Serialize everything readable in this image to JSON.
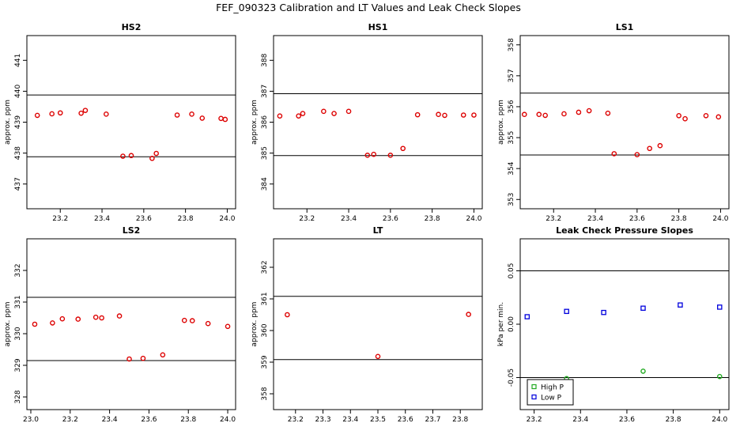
{
  "figure_title": "FEF_090323  Calibration and LT Values and Leak Check Slopes",
  "chart_data": [
    {
      "type": "scatter",
      "title": "HS2",
      "ylabel": "approx. ppm",
      "xlim": [
        23.04,
        24.04
      ],
      "ylim": [
        436.2,
        441.8
      ],
      "xticks": [
        23.2,
        23.4,
        23.6,
        23.8,
        24.0
      ],
      "xtick_labels": [
        "23.2",
        "23.4",
        "23.6",
        "23.8",
        "24.0"
      ],
      "yticks": [
        437,
        438,
        439,
        440,
        441
      ],
      "ytick_labels": [
        "437",
        "438",
        "439",
        "440",
        "441"
      ],
      "hlines": [
        439.88,
        437.88
      ],
      "series": [
        {
          "color": "#dd0000",
          "x": [
            23.09,
            23.16,
            23.2,
            23.3,
            23.32,
            23.42,
            23.5,
            23.54,
            23.64,
            23.66,
            23.76,
            23.83,
            23.88,
            23.97,
            23.99
          ],
          "y": [
            439.22,
            439.27,
            439.3,
            439.29,
            439.38,
            439.26,
            437.9,
            437.92,
            437.83,
            437.99,
            439.23,
            439.26,
            439.13,
            439.12,
            439.09
          ]
        }
      ]
    },
    {
      "type": "scatter",
      "title": "HS1",
      "ylabel": "approx. ppm",
      "xlim": [
        23.04,
        24.04
      ],
      "ylim": [
        383.2,
        388.8
      ],
      "xticks": [
        23.2,
        23.4,
        23.6,
        23.8,
        24.0
      ],
      "xtick_labels": [
        "23.2",
        "23.4",
        "23.6",
        "23.8",
        "24.0"
      ],
      "yticks": [
        384,
        385,
        386,
        387,
        388
      ],
      "ytick_labels": [
        "384",
        "385",
        "386",
        "387",
        "388"
      ],
      "hlines": [
        386.92,
        384.92
      ],
      "series": [
        {
          "color": "#dd0000",
          "x": [
            23.07,
            23.16,
            23.18,
            23.28,
            23.33,
            23.4,
            23.49,
            23.52,
            23.6,
            23.66,
            23.73,
            23.83,
            23.86,
            23.95,
            24.0
          ],
          "y": [
            386.2,
            386.2,
            386.28,
            386.35,
            386.28,
            386.35,
            384.93,
            384.96,
            384.93,
            385.15,
            386.24,
            386.25,
            386.22,
            386.23,
            386.23
          ]
        }
      ]
    },
    {
      "type": "scatter",
      "title": "LS1",
      "ylabel": "approx. ppm",
      "xlim": [
        23.04,
        24.04
      ],
      "ylim": [
        352.7,
        358.3
      ],
      "xticks": [
        23.2,
        23.4,
        23.6,
        23.8,
        24.0
      ],
      "xtick_labels": [
        "23.2",
        "23.4",
        "23.6",
        "23.8",
        "24.0"
      ],
      "yticks": [
        353,
        354,
        355,
        356,
        357,
        358
      ],
      "ytick_labels": [
        "353",
        "354",
        "355",
        "356",
        "357",
        "358"
      ],
      "hlines": [
        356.44,
        354.44
      ],
      "series": [
        {
          "color": "#dd0000",
          "x": [
            23.06,
            23.13,
            23.16,
            23.25,
            23.32,
            23.37,
            23.46,
            23.49,
            23.6,
            23.66,
            23.71,
            23.8,
            23.83,
            23.93,
            23.99
          ],
          "y": [
            355.75,
            355.75,
            355.72,
            355.77,
            355.82,
            355.87,
            355.79,
            354.48,
            354.45,
            354.65,
            354.74,
            355.71,
            355.61,
            355.71,
            355.67
          ]
        }
      ]
    },
    {
      "type": "scatter",
      "title": "LS2",
      "ylabel": "approx. ppm",
      "xlim": [
        22.98,
        24.04
      ],
      "ylim": [
        327.6,
        333.0
      ],
      "xticks": [
        23.0,
        23.2,
        23.4,
        23.6,
        23.8,
        24.0
      ],
      "xtick_labels": [
        "23.0",
        "23.2",
        "23.4",
        "23.6",
        "23.8",
        "24.0"
      ],
      "yticks": [
        328,
        329,
        330,
        331,
        332
      ],
      "ytick_labels": [
        "328",
        "329",
        "330",
        "331",
        "332"
      ],
      "hlines": [
        331.15,
        329.15
      ],
      "series": [
        {
          "color": "#dd0000",
          "x": [
            23.02,
            23.11,
            23.16,
            23.24,
            23.33,
            23.36,
            23.45,
            23.5,
            23.57,
            23.67,
            23.78,
            23.82,
            23.9,
            24.0
          ],
          "y": [
            330.3,
            330.34,
            330.47,
            330.46,
            330.52,
            330.5,
            330.56,
            329.2,
            329.22,
            329.33,
            330.42,
            330.41,
            330.32,
            330.23
          ]
        }
      ]
    },
    {
      "type": "scatter",
      "title": "LT",
      "ylabel": "approx. ppm",
      "xlim": [
        23.12,
        23.88
      ],
      "ylim": [
        357.5,
        362.9
      ],
      "xticks": [
        23.2,
        23.3,
        23.4,
        23.5,
        23.6,
        23.7,
        23.8
      ],
      "xtick_labels": [
        "23.2",
        "23.3",
        "23.4",
        "23.5",
        "23.6",
        "23.7",
        "23.8"
      ],
      "yticks": [
        358,
        359,
        360,
        361,
        362
      ],
      "ytick_labels": [
        "358",
        "359",
        "360",
        "361",
        "362"
      ],
      "hlines": [
        361.08,
        359.08
      ],
      "series": [
        {
          "color": "#dd0000",
          "x": [
            23.17,
            23.5,
            23.83
          ],
          "y": [
            360.5,
            359.18,
            360.51
          ]
        }
      ]
    },
    {
      "type": "scatter",
      "title": "Leak Check Pressure Slopes",
      "ylabel": "kPa per min.",
      "xlim": [
        23.14,
        24.04
      ],
      "ylim": [
        -0.08,
        0.08
      ],
      "xticks": [
        23.2,
        23.4,
        23.6,
        23.8,
        24.0
      ],
      "xtick_labels": [
        "23.2",
        "23.4",
        "23.6",
        "23.8",
        "24.0"
      ],
      "yticks": [
        -0.05,
        0.0,
        0.05
      ],
      "ytick_labels": [
        "-0.05",
        "0.00",
        "0.05"
      ],
      "hlines": [
        0.05,
        -0.05
      ],
      "legend": "bottom-left",
      "series": [
        {
          "name": "High P",
          "color": "#22aa22",
          "x": [
            23.34,
            23.67,
            24.0
          ],
          "y": [
            -0.051,
            -0.044,
            -0.049
          ]
        },
        {
          "name": "Low P",
          "color": "#0000dd",
          "x": [
            23.17,
            23.34,
            23.5,
            23.67,
            23.83,
            24.0
          ],
          "y": [
            0.007,
            0.012,
            0.011,
            0.015,
            0.018,
            0.016
          ]
        }
      ]
    }
  ]
}
